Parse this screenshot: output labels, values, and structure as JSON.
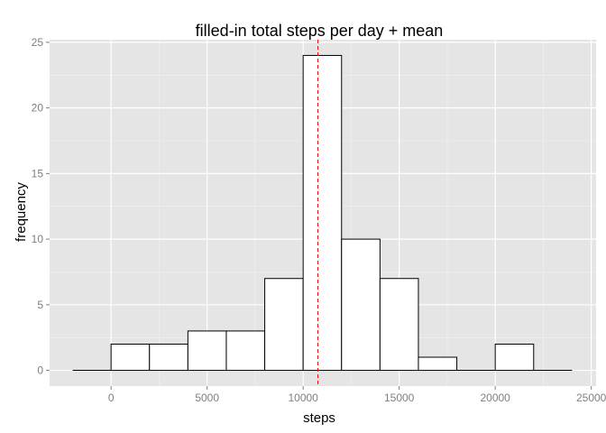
{
  "chart_data": {
    "type": "bar",
    "title": "filled-in total steps per day + mean",
    "xlabel": "steps",
    "ylabel": "frequency",
    "bin_width": 2000,
    "bins": [
      {
        "start": -2000,
        "end": 0,
        "count": 0
      },
      {
        "start": 0,
        "end": 2000,
        "count": 2
      },
      {
        "start": 2000,
        "end": 4000,
        "count": 2
      },
      {
        "start": 4000,
        "end": 6000,
        "count": 3
      },
      {
        "start": 6000,
        "end": 8000,
        "count": 3
      },
      {
        "start": 8000,
        "end": 10000,
        "count": 7
      },
      {
        "start": 10000,
        "end": 12000,
        "count": 24
      },
      {
        "start": 12000,
        "end": 14000,
        "count": 10
      },
      {
        "start": 14000,
        "end": 16000,
        "count": 7
      },
      {
        "start": 16000,
        "end": 18000,
        "count": 1
      },
      {
        "start": 18000,
        "end": 20000,
        "count": 0
      },
      {
        "start": 20000,
        "end": 22000,
        "count": 2
      },
      {
        "start": 22000,
        "end": 24000,
        "count": 0
      }
    ],
    "mean_line": 10766,
    "xlim": [
      -3200,
      25250
    ],
    "ylim": [
      -1.2,
      25.2
    ],
    "x_ticks": [
      0,
      5000,
      10000,
      15000,
      20000,
      25000
    ],
    "x_tick_labels": [
      "0",
      "5000",
      "10000",
      "15000",
      "20000",
      "25000"
    ],
    "y_ticks": [
      0,
      5,
      10,
      15,
      20,
      25
    ],
    "y_tick_labels": [
      "0",
      "5",
      "10",
      "15",
      "20",
      "25"
    ],
    "grid": true,
    "colors": {
      "panel": "#e5e5e5",
      "grid_major": "#ffffff",
      "grid_minor": "#f2f2f2",
      "bar_fill": "#ffffff",
      "bar_stroke": "#000000",
      "mean_line": "#ff0000",
      "tick": "#7f7f7f"
    }
  }
}
